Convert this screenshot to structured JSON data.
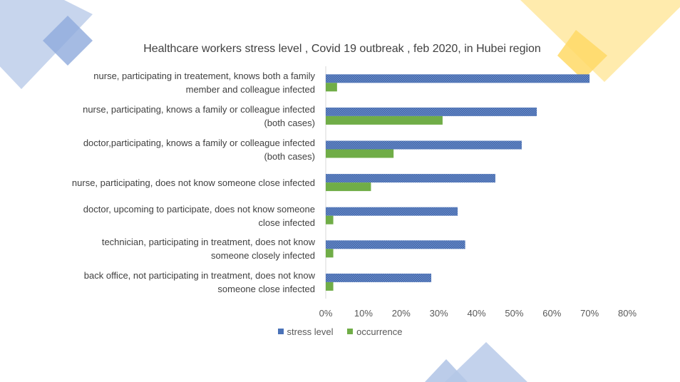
{
  "colors": {
    "stress": "#4a72b8",
    "occurrence": "#70ad47",
    "deco_blue": "#b4c7e7",
    "deco_blue_dark": "#8faadc",
    "deco_yellow": "#ffe699",
    "deco_yellow_dark": "#ffd966"
  },
  "chart_data": {
    "type": "bar",
    "orientation": "horizontal",
    "title": "Healthcare workers stress level , Covid 19 outbreak , feb 2020,  in Hubei region",
    "categories": [
      [
        "nurse, participating in treatement, knows both a family",
        "member and colleague infected"
      ],
      [
        "nurse, participating, knows a family or colleague infected",
        "(both cases)"
      ],
      [
        "doctor,participating, knows a family or colleague infected",
        "(both cases)"
      ],
      [
        "nurse, participating, does not know someone close infected"
      ],
      [
        "doctor, upcoming to participate, does not know someone",
        "close infected"
      ],
      [
        "technician, participating in treatment, does not know",
        "someone closely infected"
      ],
      [
        "back office, not participating in treatment, does not know",
        "someone close infected"
      ]
    ],
    "series": [
      {
        "name": "stress level",
        "values": [
          0.7,
          0.56,
          0.52,
          0.45,
          0.35,
          0.37,
          0.28
        ]
      },
      {
        "name": "occurrence",
        "values": [
          0.03,
          0.31,
          0.18,
          0.12,
          0.02,
          0.02,
          0.02
        ]
      }
    ],
    "xlim": [
      0,
      0.8
    ],
    "xticks": [
      "0%",
      "10%",
      "20%",
      "30%",
      "40%",
      "50%",
      "60%",
      "70%",
      "80%"
    ],
    "grid": false,
    "legend_position": "bottom"
  }
}
